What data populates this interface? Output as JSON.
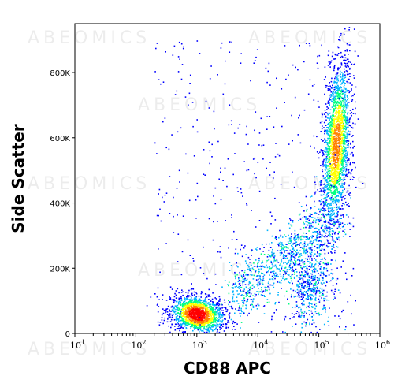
{
  "watermark": "ABEOMICS",
  "chart_data": {
    "type": "scatter",
    "subtype": "flow-cytometry density dot plot",
    "xlabel": "CD88 APC",
    "ylabel": "Side Scatter",
    "x_scale": "log",
    "xlim": [
      10,
      1000000
    ],
    "ylim": [
      0,
      950000
    ],
    "x_ticks": [
      {
        "base": "10",
        "exp": "1"
      },
      {
        "base": "10",
        "exp": "2"
      },
      {
        "base": "10",
        "exp": "3"
      },
      {
        "base": "10",
        "exp": "4"
      },
      {
        "base": "10",
        "exp": "5"
      },
      {
        "base": "10",
        "exp": "6"
      }
    ],
    "y_ticks": [
      {
        "value": 0,
        "label": "0"
      },
      {
        "value": 200000,
        "label": "200K"
      },
      {
        "value": 400000,
        "label": "400K"
      },
      {
        "value": 600000,
        "label": "600K"
      },
      {
        "value": 800000,
        "label": "800K"
      }
    ],
    "grid": false,
    "colormap": [
      "#0000ff",
      "#00b4ff",
      "#00ff80",
      "#ffff00",
      "#ff8000",
      "#ff0000"
    ],
    "populations": [
      {
        "name": "CD88-negative cluster",
        "x_center": 1000,
        "y_center": 60000,
        "peak_density": "high"
      },
      {
        "name": "CD88-positive cluster",
        "x_center": 200000,
        "y_center": 580000,
        "peak_density": "medium"
      },
      {
        "name": "intermediate bridge",
        "x_center": 60000,
        "y_center": 250000,
        "peak_density": "low"
      }
    ]
  }
}
